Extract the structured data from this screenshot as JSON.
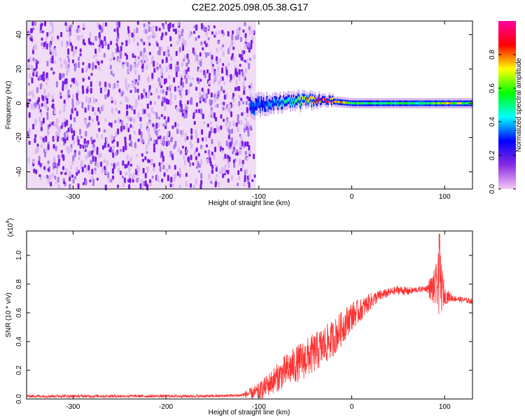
{
  "title": "C2E2.2025.098.05.38.G17",
  "colorbar": {
    "label": "Normalized spectral amplitude",
    "ticks": [
      0.0,
      0.2,
      0.4,
      0.6,
      0.8
    ],
    "tick_labels": [
      "0.0",
      "0.2",
      "0.4",
      "0.6",
      "0.8"
    ],
    "range": [
      0,
      1
    ],
    "colormap": [
      "#f4c8f4",
      "#8a2be2",
      "#0000ff",
      "#00ffff",
      "#00ff00",
      "#ffff00",
      "#ff0000",
      "#ff00a0"
    ]
  },
  "chart_data": [
    {
      "type": "heatmap",
      "xlabel": "Height of straight line (km)",
      "ylabel": "Frequency (Hz)",
      "xlim": [
        -350,
        130
      ],
      "ylim": [
        -50,
        48
      ],
      "xticks": [
        -300,
        -200,
        -100,
        0,
        100
      ],
      "xtick_labels": [
        "-300",
        "-200",
        "-100",
        "0",
        "100"
      ],
      "yticks": [
        -40,
        -20,
        0,
        20,
        40
      ],
      "ytick_labels": [
        "-40",
        "-20",
        "0",
        "20",
        "40"
      ],
      "noise_region_x": [
        -350,
        -103
      ],
      "carrier_band": {
        "x": [
          -110,
          -100,
          -80,
          -60,
          -40,
          -20,
          0,
          20,
          40,
          60,
          80,
          100,
          130
        ],
        "center_hz": [
          -2,
          -1,
          0,
          1,
          2,
          1,
          0,
          0,
          0,
          0,
          0,
          0,
          0
        ],
        "halfwidth_hz": [
          7,
          6,
          5,
          5,
          4,
          3,
          3,
          3,
          3,
          3,
          3,
          3,
          3
        ],
        "peak_amplitude": [
          0.35,
          0.3,
          0.45,
          0.6,
          0.8,
          0.95,
          0.6,
          0.55,
          0.55,
          0.55,
          0.55,
          0.75,
          0.6
        ]
      },
      "grid": false
    },
    {
      "type": "line",
      "xlabel": "Height of straight line (km)",
      "ylabel": "SNR (10 * v/v)",
      "y_scale_label": "(x10",
      "y_scale_exponent": "4",
      "xlim": [
        -350,
        130
      ],
      "ylim": [
        0,
        1.17
      ],
      "xticks": [
        -300,
        -200,
        -100,
        0,
        100
      ],
      "xtick_labels": [
        "-300",
        "-200",
        "-100",
        "0",
        "100"
      ],
      "yticks": [
        0.0,
        0.2,
        0.4,
        0.6,
        0.8,
        1.0
      ],
      "ytick_labels": [
        "0.0",
        "0.2",
        "0.4",
        "0.6",
        "0.8",
        "1.0"
      ],
      "series": [
        {
          "color": "#ff3030",
          "x": [
            -350,
            -300,
            -250,
            -200,
            -150,
            -120,
            -100,
            -90,
            -80,
            -70,
            -60,
            -50,
            -40,
            -30,
            -20,
            -10,
            0,
            10,
            20,
            30,
            40,
            50,
            60,
            70,
            80,
            90,
            95,
            100,
            110,
            120,
            130
          ],
          "y": [
            0.02,
            0.02,
            0.02,
            0.02,
            0.02,
            0.025,
            0.05,
            0.1,
            0.15,
            0.2,
            0.24,
            0.28,
            0.32,
            0.37,
            0.42,
            0.5,
            0.58,
            0.62,
            0.68,
            0.72,
            0.74,
            0.76,
            0.75,
            0.76,
            0.77,
            0.77,
            0.82,
            0.72,
            0.7,
            0.69,
            0.68
          ],
          "noise_amplitude": [
            0.01,
            0.01,
            0.01,
            0.01,
            0.01,
            0.01,
            0.06,
            0.08,
            0.1,
            0.12,
            0.13,
            0.14,
            0.14,
            0.14,
            0.13,
            0.12,
            0.1,
            0.08,
            0.06,
            0.04,
            0.03,
            0.03,
            0.03,
            0.02,
            0.02,
            0.15,
            0.25,
            0.06,
            0.02,
            0.02,
            0.02
          ]
        }
      ],
      "grid": false
    }
  ]
}
